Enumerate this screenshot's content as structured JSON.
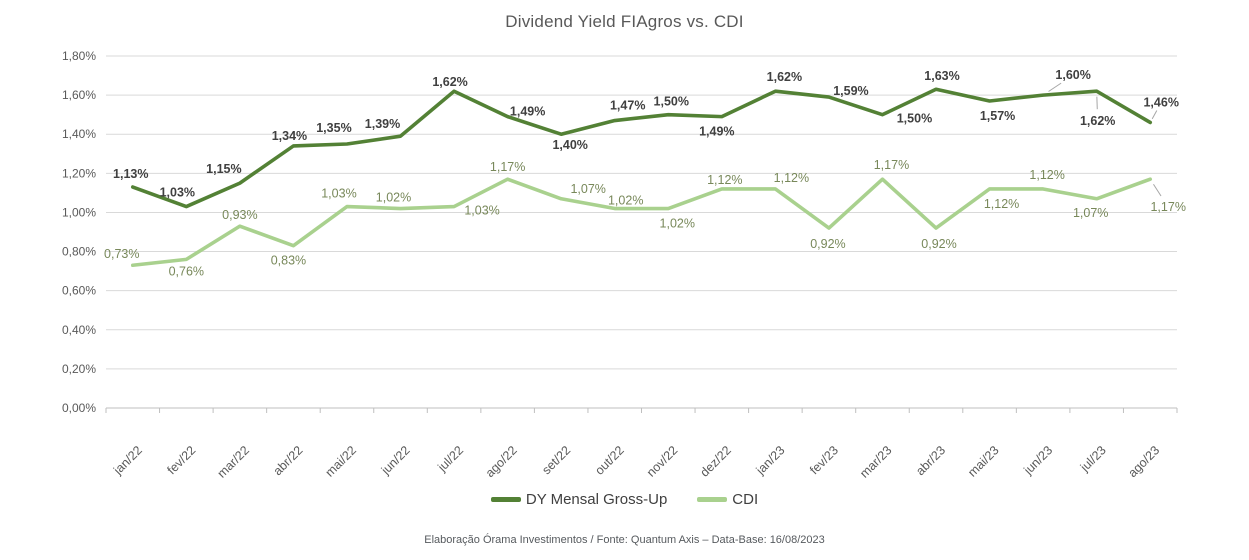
{
  "title": "Dividend Yield FIAgros vs. CDI",
  "footer": "Elaboração Órama Investimentos / Fonte: Quantum Axis – Data-Base: 16/08/2023",
  "legend": [
    {
      "label": "DY Mensal Gross-Up",
      "color": "#538135"
    },
    {
      "label": "CDI",
      "color": "#A9D18E"
    }
  ],
  "colors": {
    "background": "#FFFFFF",
    "gridline": "#D9D9D9",
    "axis_line": "#BFBFBF",
    "tick_text": "#595959",
    "title_text": "#595959",
    "leader_line": "#A6A6A6",
    "footer_text": "#565A5E"
  },
  "chart_data": {
    "type": "line",
    "title": "Dividend Yield FIAgros vs. CDI",
    "xlabel": "",
    "ylabel": "",
    "ylim": [
      0,
      1.8
    ],
    "grid": true,
    "legend_position": "bottom",
    "categories": [
      "jan/22",
      "fev/22",
      "mar/22",
      "abr/22",
      "mai/22",
      "jun/22",
      "jul/22",
      "ago/22",
      "set/22",
      "out/22",
      "nov/22",
      "dez/22",
      "jan/23",
      "fev/23",
      "mar/23",
      "abr/23",
      "mai/23",
      "jun/23",
      "jul/23",
      "ago/23"
    ],
    "yticks": [
      {
        "v": 0.0,
        "label": "0,00%"
      },
      {
        "v": 0.2,
        "label": "0,20%"
      },
      {
        "v": 0.4,
        "label": "0,40%"
      },
      {
        "v": 0.6,
        "label": "0,60%"
      },
      {
        "v": 0.8,
        "label": "0,80%"
      },
      {
        "v": 1.0,
        "label": "1,00%"
      },
      {
        "v": 1.2,
        "label": "1,20%"
      },
      {
        "v": 1.4,
        "label": "1,40%"
      },
      {
        "v": 1.6,
        "label": "1,60%"
      },
      {
        "v": 1.8,
        "label": "1,80%"
      }
    ],
    "series": [
      {
        "name": "DY Mensal Gross-Up",
        "color": "#538135",
        "label_color": "#404040",
        "label_bold": true,
        "values": [
          1.13,
          1.03,
          1.15,
          1.34,
          1.35,
          1.39,
          1.62,
          1.49,
          1.4,
          1.47,
          1.5,
          1.49,
          1.62,
          1.59,
          1.5,
          1.63,
          1.57,
          1.6,
          1.62,
          1.46
        ],
        "labels": [
          "1,13%",
          "1,03%",
          "1,15%",
          "1,34%",
          "1,35%",
          "1,39%",
          "1,62%",
          "1,49%",
          "1,40%",
          "1,47%",
          "1,50%",
          "1,49%",
          "1,62%",
          "1,59%",
          "1,50%",
          "1,63%",
          "1,57%",
          "1,60%",
          "1,62%",
          "1,46%"
        ],
        "label_offsets": [
          [
            -2,
            -13
          ],
          [
            -9,
            -14
          ],
          [
            -16,
            -14
          ],
          [
            -4,
            -10
          ],
          [
            -13,
            -16
          ],
          [
            -18,
            -12
          ],
          [
            -4,
            -9
          ],
          [
            20,
            -5
          ],
          [
            9,
            11
          ],
          [
            13,
            -15
          ],
          [
            3,
            -13
          ],
          [
            -5,
            15
          ],
          [
            9,
            -14
          ],
          [
            22,
            -6
          ],
          [
            32,
            4
          ],
          [
            6,
            -13
          ],
          [
            8,
            15
          ],
          [
            30,
            -20
          ],
          [
            1,
            30
          ],
          [
            11,
            -20
          ]
        ],
        "leader_indices": [
          17,
          18,
          19
        ]
      },
      {
        "name": "CDI",
        "color": "#A9D18E",
        "label_color": "#78885A",
        "label_bold": false,
        "values": [
          0.73,
          0.76,
          0.93,
          0.83,
          1.03,
          1.02,
          1.03,
          1.17,
          1.07,
          1.02,
          1.02,
          1.12,
          1.12,
          0.92,
          1.17,
          0.92,
          1.12,
          1.12,
          1.07,
          1.17
        ],
        "labels": [
          "0,73%",
          "0,76%",
          "0,93%",
          "0,83%",
          "1,03%",
          "1,02%",
          "1,03%",
          "1,17%",
          "1,07%",
          "1,02%",
          "1,02%",
          "1,12%",
          "1,12%",
          "0,92%",
          "1,17%",
          "0,92%",
          "1,12%",
          "1,12%",
          "1,07%",
          "1,17%"
        ],
        "label_offsets": [
          [
            -11,
            -11
          ],
          [
            0,
            12
          ],
          [
            0,
            -11
          ],
          [
            -5,
            15
          ],
          [
            -8,
            -13
          ],
          [
            -7,
            -11
          ],
          [
            28,
            4
          ],
          [
            0,
            -12
          ],
          [
            27,
            -10
          ],
          [
            11,
            -8
          ],
          [
            9,
            15
          ],
          [
            3,
            -9
          ],
          [
            16,
            -11
          ],
          [
            -1,
            16
          ],
          [
            9,
            -14
          ],
          [
            3,
            16
          ],
          [
            12,
            15
          ],
          [
            4,
            -14
          ],
          [
            -6,
            14
          ],
          [
            18,
            28
          ]
        ],
        "leader_indices": [
          19
        ]
      }
    ]
  }
}
